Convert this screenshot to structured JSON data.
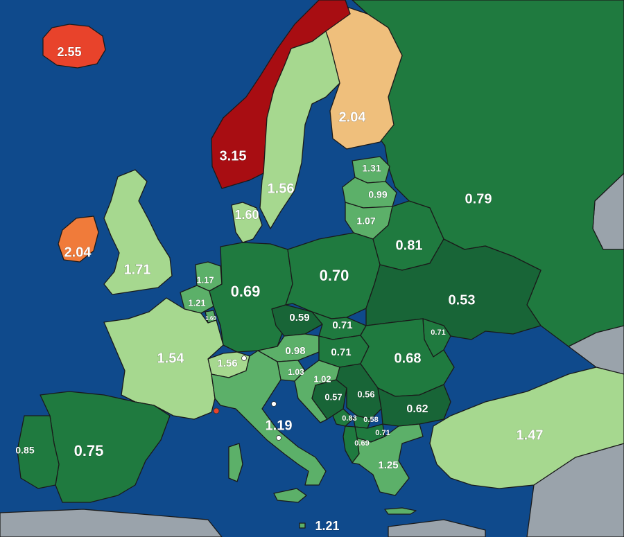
{
  "colors": {
    "sea": "#0f4a8c",
    "non_covered_land": "#9aa3ab",
    "very_high": "#a80d12",
    "high_red": "#e8432b",
    "high_orange": "#f07b3a",
    "mid_tan": "#efbf7c",
    "light_green": "#a6d88f",
    "mid_green": "#5cb069",
    "dark_green": "#1f7a3f",
    "darker_green": "#186537"
  },
  "regions": [
    {
      "id": "iceland",
      "value": "2.55",
      "color_key": "high_red"
    },
    {
      "id": "norway",
      "value": "3.15",
      "color_key": "very_high"
    },
    {
      "id": "sweden",
      "value": "1.56",
      "color_key": "light_green"
    },
    {
      "id": "finland",
      "value": "2.04",
      "color_key": "mid_tan"
    },
    {
      "id": "russia",
      "value": "0.79",
      "color_key": "dark_green"
    },
    {
      "id": "estonia",
      "value": "1.31",
      "color_key": "mid_green"
    },
    {
      "id": "latvia",
      "value": "0.99",
      "color_key": "mid_green"
    },
    {
      "id": "lithuania",
      "value": "1.07",
      "color_key": "mid_green"
    },
    {
      "id": "belarus",
      "value": "0.81",
      "color_key": "dark_green"
    },
    {
      "id": "denmark",
      "value": "1.60",
      "color_key": "light_green"
    },
    {
      "id": "ireland",
      "value": "2.04",
      "color_key": "high_orange"
    },
    {
      "id": "uk",
      "value": "1.71",
      "color_key": "light_green"
    },
    {
      "id": "netherlands",
      "value": "1.17",
      "color_key": "mid_green"
    },
    {
      "id": "belgium",
      "value": "1.21",
      "color_key": "mid_green"
    },
    {
      "id": "luxembourg",
      "value": "1.60",
      "color_key": "mid_green"
    },
    {
      "id": "germany",
      "value": "0.69",
      "color_key": "dark_green"
    },
    {
      "id": "poland",
      "value": "0.70",
      "color_key": "dark_green"
    },
    {
      "id": "ukraine",
      "value": "0.53",
      "color_key": "darker_green"
    },
    {
      "id": "czechia",
      "value": "0.59",
      "color_key": "darker_green"
    },
    {
      "id": "slovakia",
      "value": "0.71",
      "color_key": "dark_green"
    },
    {
      "id": "moldova",
      "value": "0.71",
      "color_key": "dark_green"
    },
    {
      "id": "france",
      "value": "1.54",
      "color_key": "light_green"
    },
    {
      "id": "switzerland",
      "value": "1.56",
      "color_key": "light_green"
    },
    {
      "id": "austria",
      "value": "0.98",
      "color_key": "mid_green"
    },
    {
      "id": "hungary",
      "value": "0.71",
      "color_key": "dark_green"
    },
    {
      "id": "romania",
      "value": "0.68",
      "color_key": "dark_green"
    },
    {
      "id": "slovenia",
      "value": "1.03",
      "color_key": "mid_green"
    },
    {
      "id": "croatia",
      "value": "1.02",
      "color_key": "mid_green"
    },
    {
      "id": "bosnia",
      "value": "0.57",
      "color_key": "darker_green"
    },
    {
      "id": "serbia",
      "value": "0.56",
      "color_key": "darker_green"
    },
    {
      "id": "montenegro",
      "value": "0.83",
      "color_key": "dark_green"
    },
    {
      "id": "kosovo",
      "value": "0.58",
      "color_key": "dark_green"
    },
    {
      "id": "north_macedonia",
      "value": "0.71",
      "color_key": "dark_green"
    },
    {
      "id": "albania",
      "value": "0.69",
      "color_key": "dark_green"
    },
    {
      "id": "bulgaria",
      "value": "0.62",
      "color_key": "darker_green"
    },
    {
      "id": "greece",
      "value": "1.25",
      "color_key": "mid_green"
    },
    {
      "id": "turkey",
      "value": "1.47",
      "color_key": "light_green"
    },
    {
      "id": "italy",
      "value": "1.19",
      "color_key": "mid_green"
    },
    {
      "id": "malta",
      "value": "1.21",
      "color_key": "mid_green"
    },
    {
      "id": "portugal",
      "value": "0.85",
      "color_key": "dark_green"
    },
    {
      "id": "spain",
      "value": "0.75",
      "color_key": "dark_green"
    }
  ]
}
